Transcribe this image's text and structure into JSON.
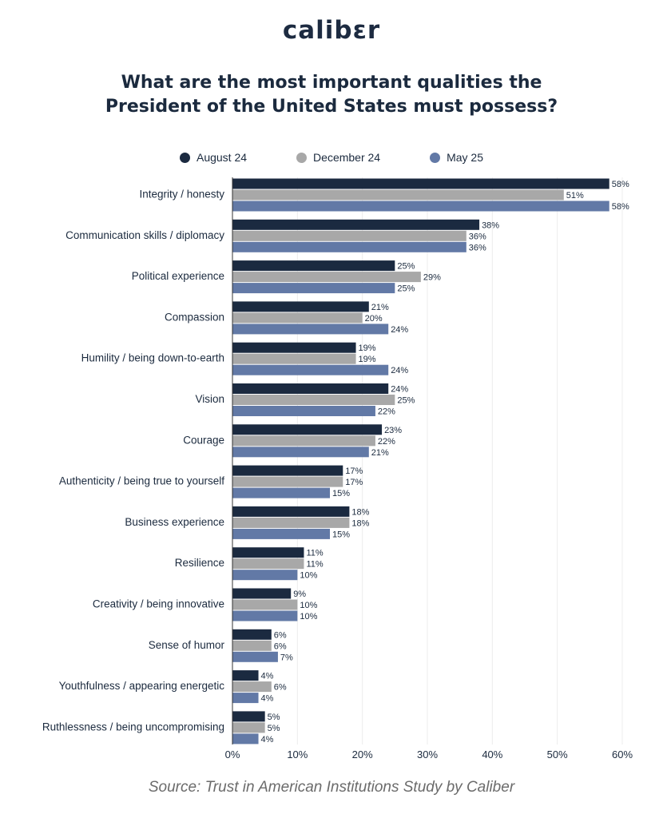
{
  "logo": "calibεr",
  "title_line1": "What are the most important qualities the",
  "title_line2": "President of the United States must possess?",
  "source": "Source: Trust in American Institutions Study by Caliber",
  "colors": {
    "august": "#1b2a40",
    "december": "#a8a8a8",
    "may": "#6279a6",
    "grid": "#ececec"
  },
  "chart_data": {
    "type": "bar",
    "orientation": "horizontal",
    "categories": [
      "Integrity / honesty",
      "Communication skills / diplomacy",
      "Political experience",
      "Compassion",
      "Humility / being down-to-earth",
      "Vision",
      "Courage",
      "Authenticity / being true to yourself",
      "Business experience",
      "Resilience",
      "Creativity / being innovative",
      "Sense of humor",
      "Youthfulness / appearing energetic",
      "Ruthlessness / being uncompromising"
    ],
    "series": [
      {
        "name": "August 24",
        "values": [
          58,
          38,
          25,
          21,
          19,
          24,
          23,
          17,
          18,
          11,
          9,
          6,
          4,
          5
        ]
      },
      {
        "name": "December 24",
        "values": [
          51,
          36,
          29,
          20,
          19,
          25,
          22,
          17,
          18,
          11,
          10,
          6,
          6,
          5
        ]
      },
      {
        "name": "May 25",
        "values": [
          58,
          36,
          25,
          24,
          24,
          22,
          21,
          15,
          15,
          10,
          10,
          7,
          4,
          4
        ]
      }
    ],
    "xlim": [
      0,
      60
    ],
    "xticks": [
      "0%",
      "10%",
      "20%",
      "30%",
      "40%",
      "50%",
      "60%"
    ],
    "value_suffix": "%",
    "grid": true,
    "legend_position": "top"
  }
}
